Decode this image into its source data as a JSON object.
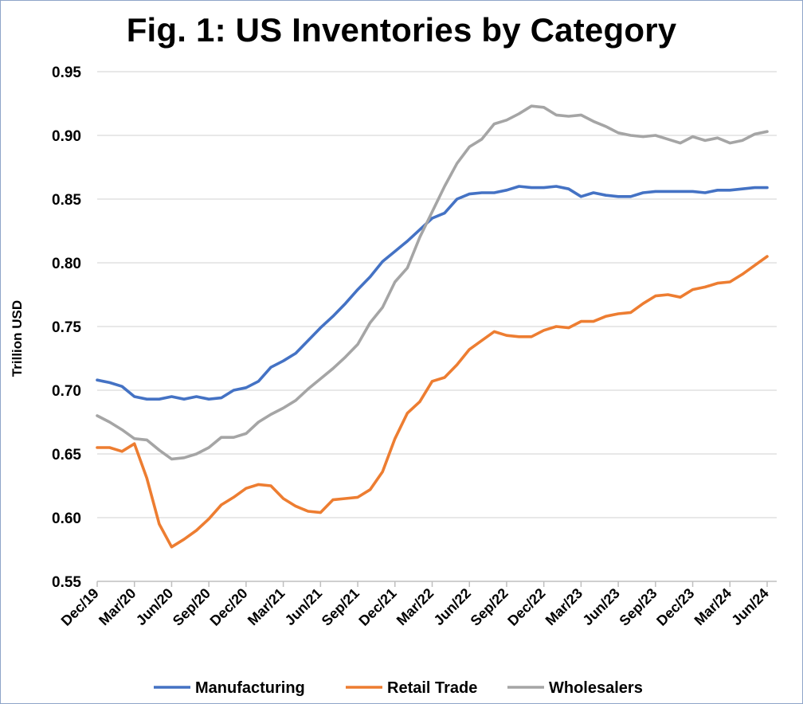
{
  "chart_data": {
    "type": "line",
    "title": "Fig. 1: US Inventories by Category",
    "ylabel": "Trillion USD",
    "xlabel": "",
    "ylim": [
      0.55,
      0.95
    ],
    "yticks": [
      "0.55",
      "0.60",
      "0.65",
      "0.70",
      "0.75",
      "0.80",
      "0.85",
      "0.90",
      "0.95"
    ],
    "x_tick_labels": [
      "Dec/19",
      "Mar/20",
      "Jun/20",
      "Sep/20",
      "Dec/20",
      "Mar/21",
      "Jun/21",
      "Sep/21",
      "Dec/21",
      "Mar/22",
      "Jun/22",
      "Sep/22",
      "Dec/22",
      "Mar/23",
      "Jun/23",
      "Sep/23",
      "Dec/23",
      "Mar/24",
      "Jun/24"
    ],
    "x_start": "Dec/19",
    "x_end": "Jun/24",
    "frequency": "monthly",
    "grid": "horizontal",
    "legend_position": "bottom",
    "series": [
      {
        "name": "Manufacturing",
        "color": "#4472c4",
        "values": [
          0.708,
          0.706,
          0.703,
          0.695,
          0.693,
          0.693,
          0.695,
          0.693,
          0.695,
          0.693,
          0.694,
          0.7,
          0.702,
          0.707,
          0.718,
          0.723,
          0.729,
          0.739,
          0.749,
          0.758,
          0.768,
          0.779,
          0.789,
          0.801,
          0.809,
          0.817,
          0.826,
          0.835,
          0.839,
          0.85,
          0.854,
          0.855,
          0.855,
          0.857,
          0.86,
          0.859,
          0.859,
          0.86,
          0.858,
          0.852,
          0.855,
          0.853,
          0.852,
          0.852,
          0.855,
          0.856,
          0.856,
          0.856,
          0.856,
          0.855,
          0.857,
          0.857,
          0.858,
          0.859,
          0.859
        ]
      },
      {
        "name": "Retail Trade",
        "color": "#ed7d31",
        "values": [
          0.655,
          0.655,
          0.652,
          0.658,
          0.631,
          0.595,
          0.577,
          0.583,
          0.59,
          0.599,
          0.61,
          0.616,
          0.623,
          0.626,
          0.625,
          0.615,
          0.609,
          0.605,
          0.604,
          0.614,
          0.615,
          0.616,
          0.622,
          0.636,
          0.662,
          0.682,
          0.691,
          0.707,
          0.71,
          0.72,
          0.732,
          0.739,
          0.746,
          0.743,
          0.742,
          0.742,
          0.747,
          0.75,
          0.749,
          0.754,
          0.754,
          0.758,
          0.76,
          0.761,
          0.768,
          0.774,
          0.775,
          0.773,
          0.779,
          0.781,
          0.784,
          0.785,
          0.791,
          0.798,
          0.805
        ]
      },
      {
        "name": "Wholesalers",
        "color": "#a5a5a5",
        "values": [
          0.68,
          0.675,
          0.669,
          0.662,
          0.661,
          0.653,
          0.646,
          0.647,
          0.65,
          0.655,
          0.663,
          0.663,
          0.666,
          0.675,
          0.681,
          0.686,
          0.692,
          0.701,
          0.709,
          0.717,
          0.726,
          0.736,
          0.753,
          0.765,
          0.785,
          0.796,
          0.82,
          0.84,
          0.86,
          0.878,
          0.891,
          0.897,
          0.909,
          0.912,
          0.917,
          0.923,
          0.922,
          0.916,
          0.915,
          0.916,
          0.911,
          0.907,
          0.902,
          0.9,
          0.899,
          0.9,
          0.897,
          0.894,
          0.899,
          0.896,
          0.898,
          0.894,
          0.896,
          0.901,
          0.903
        ]
      }
    ]
  }
}
